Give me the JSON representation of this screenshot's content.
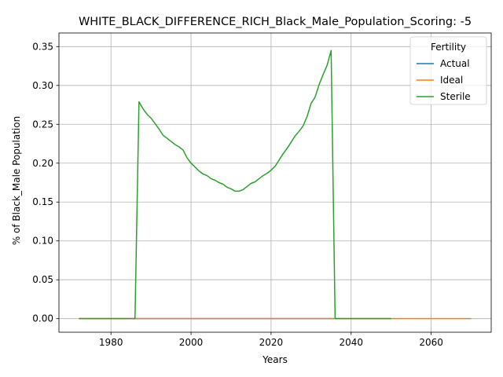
{
  "chart_data": {
    "type": "line",
    "title": "WHITE_BLACK_DIFFERENCE_RICH_Black_Male_Population_Scoring: -5",
    "xlabel": "Years",
    "ylabel": "% of Black_Male Population",
    "xlim": [
      1967,
      2075
    ],
    "ylim": [
      -0.0175,
      0.3675
    ],
    "xticks": [
      1980,
      2000,
      2020,
      2040,
      2060
    ],
    "xtick_labels": [
      "1980",
      "2000",
      "2020",
      "2040",
      "2060"
    ],
    "yticks": [
      0.0,
      0.05,
      0.1,
      0.15,
      0.2,
      0.25,
      0.3,
      0.35
    ],
    "ytick_labels": [
      "0.00",
      "0.05",
      "0.10",
      "0.15",
      "0.20",
      "0.25",
      "0.30",
      "0.35"
    ],
    "grid": true,
    "legend": {
      "title": "Fertility",
      "placement": "top-right"
    },
    "series": [
      {
        "name": "Actual",
        "color": "#1f77b4",
        "x": [
          1972,
          2050
        ],
        "y": [
          0,
          0
        ]
      },
      {
        "name": "Ideal",
        "color": "#ff7f0e",
        "x": [
          1972,
          2070
        ],
        "y": [
          0,
          0
        ]
      },
      {
        "name": "Sterile",
        "color": "#2ca02c",
        "x": [
          1972,
          1986,
          1987,
          1988,
          1989,
          1990,
          1991,
          1992,
          1993,
          1994,
          1995,
          1996,
          1997,
          1998,
          1999,
          2000,
          2001,
          2002,
          2003,
          2004,
          2005,
          2006,
          2007,
          2008,
          2009,
          2010,
          2011,
          2012,
          2013,
          2014,
          2015,
          2016,
          2017,
          2018,
          2019,
          2020,
          2021,
          2022,
          2023,
          2024,
          2025,
          2026,
          2027,
          2028,
          2029,
          2030,
          2031,
          2032,
          2033,
          2034,
          2035,
          2036,
          2037,
          2050
        ],
        "y": [
          0,
          0,
          0.279,
          0.27,
          0.263,
          0.258,
          0.251,
          0.244,
          0.236,
          0.232,
          0.228,
          0.224,
          0.221,
          0.217,
          0.207,
          0.2,
          0.195,
          0.19,
          0.186,
          0.184,
          0.18,
          0.178,
          0.175,
          0.173,
          0.169,
          0.167,
          0.164,
          0.164,
          0.166,
          0.17,
          0.174,
          0.176,
          0.18,
          0.184,
          0.187,
          0.191,
          0.196,
          0.204,
          0.212,
          0.219,
          0.227,
          0.235,
          0.241,
          0.248,
          0.26,
          0.277,
          0.285,
          0.301,
          0.314,
          0.326,
          0.345,
          0,
          0,
          0
        ]
      }
    ]
  }
}
